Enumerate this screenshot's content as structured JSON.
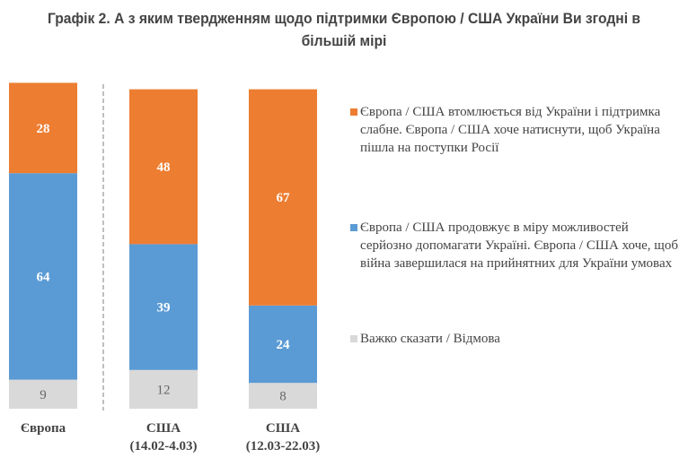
{
  "title": "Графік 2. А з яким твердженням щодо підтримки Європою / США України Ви згодні в більшій мірі",
  "colors": {
    "orange": "#ED7D31",
    "blue": "#5B9BD5",
    "gray": "#D9D9D9"
  },
  "chart_data": {
    "type": "bar",
    "stacked": true,
    "title": "Графік 2. А з яким твердженням щодо підтримки Європою / США України Ви згодні в більшій мірі",
    "categories": [
      [
        "Європа"
      ],
      [
        "США",
        "(14.02-4.03)"
      ],
      [
        "США",
        "(12.03-22.03)"
      ]
    ],
    "series": [
      {
        "name": "Важко сказати / Відмова",
        "color": "#D9D9D9",
        "values": [
          9,
          12,
          8
        ]
      },
      {
        "name": "Європа / США продовжує в міру можливостей серйозно допомагати Україні. Європа / США хоче, щоб війна завершилася на прийнятних для України умовах",
        "color": "#5B9BD5",
        "values": [
          64,
          39,
          24
        ]
      },
      {
        "name": "Європа / США втомлюється від України і підтримка слабне. Європа / США хоче натиснути, щоб Україна пішла на поступки Росії",
        "color": "#ED7D31",
        "values": [
          28,
          48,
          67
        ]
      }
    ],
    "ylim": [
      0,
      101
    ],
    "legend_position": "right",
    "grid": false
  },
  "legend": [
    "Європа / США втомлюється від України і підтримка слабне. Європа / США хоче натиснути, щоб Україна пішла на поступки Росії",
    "Європа / США продовжує в міру можливостей серйозно допомагати Україні. Європа / США хоче, щоб війна завершилася на прийнятних для України умовах",
    "Важко сказати / Відмова"
  ]
}
